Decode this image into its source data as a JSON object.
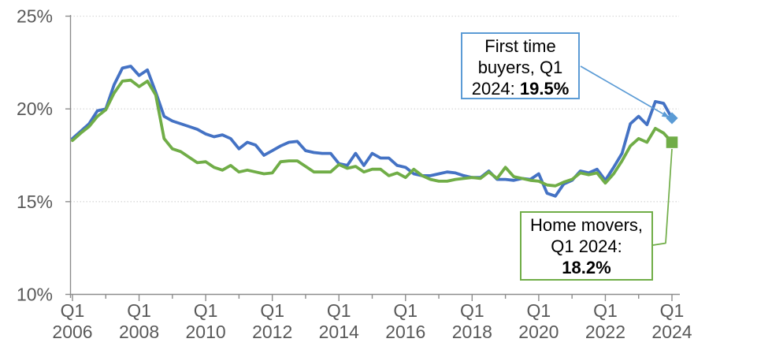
{
  "chart_data": {
    "type": "line",
    "title": "",
    "x_axis": {
      "quarter_label": "Q1",
      "start_year": 2006,
      "end_year": 2024,
      "label_years": [
        "2006",
        "2008",
        "2010",
        "2012",
        "2014",
        "2016",
        "2018",
        "2020",
        "2022",
        "2024"
      ],
      "ticks_every_years": 1,
      "labels_every_years": 2,
      "points_per_year": 4
    },
    "y_axis": {
      "min": 10,
      "max": 25,
      "tick_labels": [
        "10%",
        "15%",
        "20%",
        "25%"
      ],
      "tick_values": [
        10,
        15,
        20,
        25
      ],
      "gridline_values": [
        15,
        20,
        25
      ],
      "unit": "%"
    },
    "grid": {
      "horizontal": true,
      "style": "dotted"
    },
    "legend": "none (series labelled via callout boxes)",
    "x_range_note": "quarterly data, Q1 2006 to Q1 2024, 73 points per series",
    "series": [
      {
        "name": "First time buyers",
        "color": "#4472C4",
        "marker": "diamond",
        "marker_color": "#5B9BD5",
        "end_point": {
          "label": "Q1 2024",
          "value": 19.5
        },
        "values": [
          18.4,
          18.8,
          19.2,
          19.9,
          20.0,
          21.3,
          22.2,
          22.3,
          21.8,
          22.1,
          20.9,
          19.6,
          19.35,
          19.2,
          19.05,
          18.9,
          18.65,
          18.5,
          18.6,
          18.4,
          17.85,
          18.2,
          18.05,
          17.5,
          17.75,
          18.0,
          18.2,
          18.25,
          17.75,
          17.65,
          17.6,
          17.6,
          17.05,
          16.95,
          17.6,
          16.95,
          17.6,
          17.35,
          17.35,
          16.95,
          16.85,
          16.5,
          16.4,
          16.4,
          16.5,
          16.6,
          16.55,
          16.4,
          16.3,
          16.3,
          16.65,
          16.2,
          16.2,
          16.15,
          16.25,
          16.2,
          16.5,
          15.45,
          15.3,
          15.95,
          16.15,
          16.65,
          16.55,
          16.75,
          16.15,
          16.85,
          17.6,
          19.2,
          19.6,
          19.15,
          20.4,
          20.3,
          19.5
        ]
      },
      {
        "name": "Home movers",
        "color": "#70AD47",
        "marker": "square",
        "marker_color": "#70AD47",
        "end_point": {
          "label": "Q1 2024",
          "value": 18.2
        },
        "values": [
          18.3,
          18.7,
          19.05,
          19.6,
          19.95,
          20.85,
          21.5,
          21.55,
          21.2,
          21.5,
          20.75,
          18.4,
          17.85,
          17.7,
          17.4,
          17.1,
          17.15,
          16.85,
          16.7,
          16.95,
          16.6,
          16.7,
          16.6,
          16.5,
          16.55,
          17.15,
          17.2,
          17.2,
          16.9,
          16.6,
          16.6,
          16.6,
          17.0,
          16.8,
          16.9,
          16.6,
          16.75,
          16.75,
          16.4,
          16.55,
          16.3,
          16.75,
          16.4,
          16.2,
          16.1,
          16.1,
          16.2,
          16.25,
          16.3,
          16.25,
          16.6,
          16.25,
          16.85,
          16.35,
          16.25,
          16.15,
          16.1,
          15.9,
          15.85,
          16.05,
          16.2,
          16.55,
          16.45,
          16.55,
          16.0,
          16.5,
          17.2,
          18.0,
          18.4,
          18.2,
          18.95,
          18.7,
          18.2
        ]
      }
    ],
    "style": {
      "axis_line_color": "#8C8C8C",
      "axis_label_color": "#595959",
      "gridline_color": "#D9D9D9",
      "background": "#FFFFFF"
    }
  },
  "annotations": {
    "first_time_buyers": {
      "full_text": "First time buyers, Q1 2024: 19.5%",
      "line1": "First time",
      "line2": "buyers, Q1",
      "line3_prefix": "2024: ",
      "value": "19.5%",
      "border_color": "#5B9BD5",
      "leader_color": "#5B9BD5",
      "leader_style": "straight arrow to diamond marker"
    },
    "home_movers": {
      "full_text": "Home movers, Q1 2024: 18.2%",
      "line1": "Home movers,",
      "line2": "Q1 2024:",
      "line3_prefix": "",
      "value": "18.2%",
      "border_color": "#70AD47",
      "leader_color": "#70AD47",
      "leader_style": "elbow line to square marker"
    }
  }
}
